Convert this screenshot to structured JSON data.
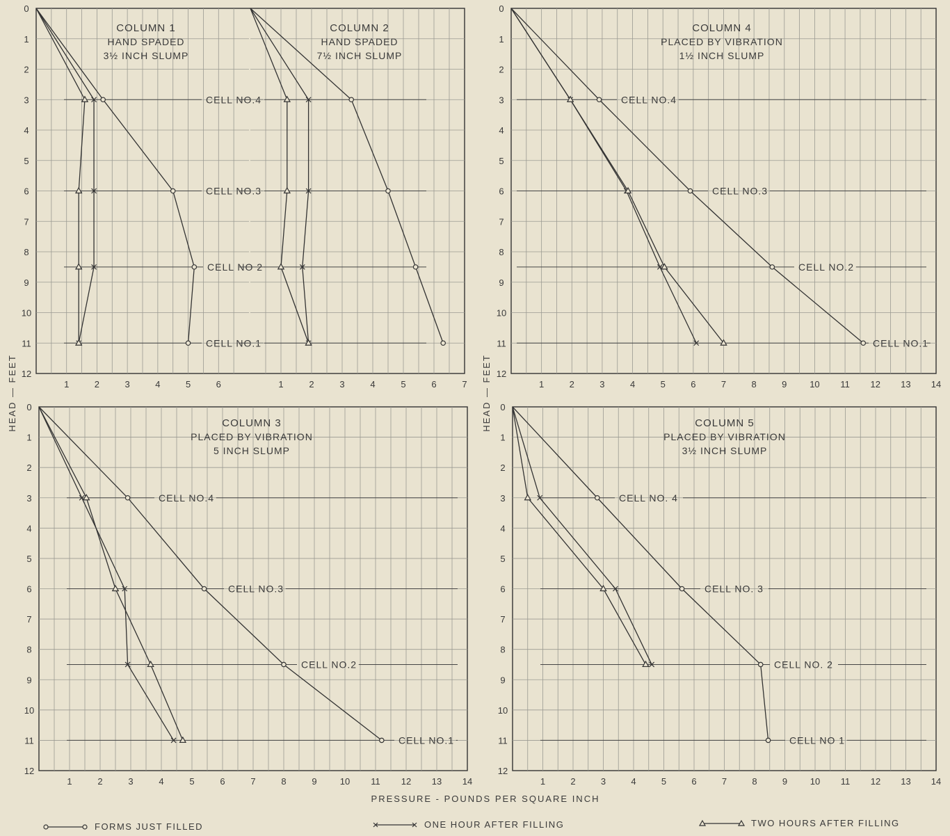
{
  "chart_data": {
    "type": "line",
    "ylabel": "HEAD — FEET",
    "xlabel": "PRESSURE - POUNDS PER SQUARE INCH",
    "legend": [
      {
        "marker": "circle",
        "label": "FORMS JUST FILLED"
      },
      {
        "marker": "cross",
        "label": "ONE HOUR AFTER FILLING"
      },
      {
        "marker": "triangle",
        "label": "TWO HOURS AFTER FILLING"
      }
    ],
    "yticks": [
      "0",
      "1",
      "2",
      "3",
      "4",
      "5",
      "6",
      "7",
      "8",
      "9",
      "10",
      "11",
      "12"
    ],
    "panels": [
      {
        "title": "COLUMN 1",
        "subtitle": [
          "HAND SPADED",
          "3½ INCH SLUMP"
        ],
        "xlim": [
          0,
          7
        ],
        "xticks": [
          "1",
          "2",
          "3",
          "4",
          "5",
          "6"
        ],
        "cells": [
          {
            "y": 3,
            "label": "CELL NO.4"
          },
          {
            "y": 6,
            "label": "CELL NO.3"
          },
          {
            "y": 8.5,
            "label": "CELL NO 2"
          },
          {
            "y": 11,
            "label": "CELL NO.1"
          }
        ],
        "series": [
          {
            "marker": "circle",
            "x": [
              0,
              2.2,
              4.5,
              5.2,
              5.0
            ],
            "y": [
              0,
              3,
              6,
              8.5,
              11
            ]
          },
          {
            "marker": "cross",
            "x": [
              0,
              1.9,
              1.9,
              1.9,
              1.4
            ],
            "y": [
              0,
              3,
              6,
              8.5,
              11
            ]
          },
          {
            "marker": "triangle",
            "x": [
              0,
              1.6,
              1.4,
              1.4,
              1.4
            ],
            "y": [
              0,
              3,
              6,
              8.5,
              11
            ]
          }
        ]
      },
      {
        "title": "COLUMN 2",
        "subtitle": [
          "HAND SPADED",
          "7½ INCH SLUMP"
        ],
        "xlim": [
          0,
          7
        ],
        "xticks": [
          "1",
          "2",
          "3",
          "4",
          "5",
          "6",
          "7"
        ],
        "cells": [],
        "series": [
          {
            "marker": "circle",
            "x": [
              0,
              3.3,
              4.5,
              5.4,
              6.3
            ],
            "y": [
              0,
              3,
              6,
              8.5,
              11
            ]
          },
          {
            "marker": "cross",
            "x": [
              0,
              1.9,
              1.9,
              1.7,
              1.9
            ],
            "y": [
              0,
              3,
              6,
              8.5,
              11
            ]
          },
          {
            "marker": "triangle",
            "x": [
              0,
              1.2,
              1.2,
              1.0,
              1.9
            ],
            "y": [
              0,
              3,
              6,
              8.5,
              11
            ]
          }
        ]
      },
      {
        "title": "COLUMN 4",
        "subtitle": [
          "PLACED BY VIBRATION",
          "1½ INCH SLUMP"
        ],
        "xlim": [
          0,
          14
        ],
        "xticks": [
          "1",
          "2",
          "3",
          "4",
          "5",
          "6",
          "7",
          "8",
          "9",
          "10",
          "11",
          "12",
          "13",
          "14"
        ],
        "cells": [
          {
            "y": 3,
            "label": "CELL NO.4"
          },
          {
            "y": 6,
            "label": "CELL NO.3"
          },
          {
            "y": 8.5,
            "label": "CELL NO.2"
          },
          {
            "y": 11,
            "label": "CELL NO.1"
          }
        ],
        "series": [
          {
            "marker": "circle",
            "x": [
              0,
              2.9,
              5.9,
              8.6,
              11.6
            ],
            "y": [
              0,
              3,
              6,
              8.5,
              11
            ]
          },
          {
            "marker": "cross",
            "x": [
              0,
              1.95,
              3.8,
              4.9,
              6.1
            ],
            "y": [
              0,
              3,
              6,
              8.5,
              11
            ]
          },
          {
            "marker": "triangle",
            "x": [
              0,
              1.95,
              3.85,
              5.05,
              7.0
            ],
            "y": [
              0,
              3,
              6,
              8.5,
              11
            ]
          }
        ]
      },
      {
        "title": "COLUMN 3",
        "subtitle": [
          "PLACED BY VIBRATION",
          "5 INCH SLUMP"
        ],
        "xlim": [
          0,
          14
        ],
        "xticks": [
          "1",
          "2",
          "3",
          "4",
          "5",
          "6",
          "7",
          "8",
          "9",
          "10",
          "11",
          "12",
          "13",
          "14"
        ],
        "cells": [
          {
            "y": 3,
            "label": "CELL NO.4"
          },
          {
            "y": 6,
            "label": "CELL NO.3"
          },
          {
            "y": 8.5,
            "label": "CELL NO.2"
          },
          {
            "y": 11,
            "label": "CELL NO.1"
          }
        ],
        "series": [
          {
            "marker": "circle",
            "x": [
              0,
              2.9,
              5.4,
              8.0,
              11.2
            ],
            "y": [
              0,
              3,
              6,
              8.5,
              11
            ]
          },
          {
            "marker": "cross",
            "x": [
              0,
              1.4,
              2.8,
              2.9,
              4.4
            ],
            "y": [
              0,
              3,
              6,
              8.5,
              11
            ]
          },
          {
            "marker": "triangle",
            "x": [
              0,
              1.55,
              2.5,
              3.65,
              4.7
            ],
            "y": [
              0,
              3,
              6,
              8.5,
              11
            ]
          }
        ]
      },
      {
        "title": "COLUMN 5",
        "subtitle": [
          "PLACED BY VIBRATION",
          "3½ INCH SLUMP"
        ],
        "xlim": [
          0,
          14
        ],
        "xticks": [
          "1",
          "2",
          "3",
          "4",
          "5",
          "6",
          "7",
          "8",
          "9",
          "10",
          "11",
          "12",
          "13",
          "14"
        ],
        "cells": [
          {
            "y": 3,
            "label": "CELL NO. 4"
          },
          {
            "y": 6,
            "label": "CELL NO. 3"
          },
          {
            "y": 8.5,
            "label": "CELL NO. 2"
          },
          {
            "y": 11,
            "label": "CELL NO 1"
          }
        ],
        "series": [
          {
            "marker": "circle",
            "x": [
              0,
              2.8,
              5.6,
              8.2,
              8.45
            ],
            "y": [
              0,
              3,
              6,
              8.5,
              11
            ]
          },
          {
            "marker": "cross",
            "x": [
              0,
              0.9,
              3.4,
              4.6
            ],
            "y": [
              0,
              3,
              6,
              8.5
            ]
          },
          {
            "marker": "triangle",
            "x": [
              0,
              0.5,
              3.0,
              4.4
            ],
            "y": [
              0,
              3,
              6,
              8.5
            ]
          }
        ]
      }
    ]
  }
}
